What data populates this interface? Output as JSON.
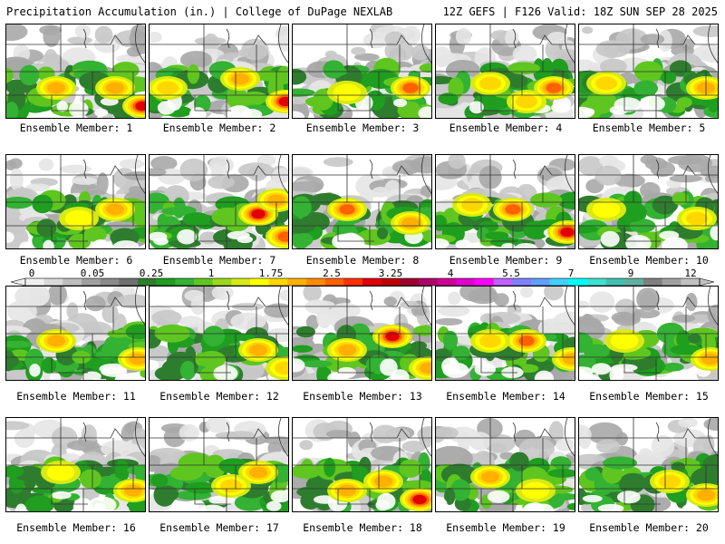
{
  "header": {
    "title": "Precipitation Accumulation (in.) | College of DuPage NEXLAB",
    "run_info": "12Z GEFS | F126 Valid: 18Z SUN SEP 28 2025"
  },
  "caption_prefix": "Ensemble Member: ",
  "members": [
    {
      "label": "Ensemble Member: 1"
    },
    {
      "label": "Ensemble Member: 2"
    },
    {
      "label": "Ensemble Member: 3"
    },
    {
      "label": "Ensemble Member: 4"
    },
    {
      "label": "Ensemble Member: 5"
    },
    {
      "label": "Ensemble Member: 6"
    },
    {
      "label": "Ensemble Member: 7"
    },
    {
      "label": "Ensemble Member: 8"
    },
    {
      "label": "Ensemble Member: 9"
    },
    {
      "label": "Ensemble Member: 10"
    },
    {
      "label": "Ensemble Member: 11"
    },
    {
      "label": "Ensemble Member: 12"
    },
    {
      "label": "Ensemble Member: 13"
    },
    {
      "label": "Ensemble Member: 14"
    },
    {
      "label": "Ensemble Member: 15"
    },
    {
      "label": "Ensemble Member: 16"
    },
    {
      "label": "Ensemble Member: 17"
    },
    {
      "label": "Ensemble Member: 18"
    },
    {
      "label": "Ensemble Member: 19"
    },
    {
      "label": "Ensemble Member: 20"
    }
  ],
  "colorbar": {
    "tick_labels": [
      "0",
      "0.05",
      "0.25",
      "1",
      "1.75",
      "2.5",
      "3.25",
      "4",
      "5.5",
      "7",
      "9",
      "12"
    ],
    "colors": [
      "#f0f0f0",
      "#d8d8d8",
      "#bdbdbd",
      "#a0a0a0",
      "#8a8a8a",
      "#6f6f6f",
      "#2e7d2e",
      "#1f9e1f",
      "#33b233",
      "#5fc61f",
      "#9bd81a",
      "#d8ea14",
      "#ffff00",
      "#ffd700",
      "#ffb000",
      "#ff8c00",
      "#ff6000",
      "#ff3000",
      "#e00000",
      "#c00000",
      "#a00030",
      "#b0006a",
      "#d0009a",
      "#e000d0",
      "#ff00ff",
      "#c060ff",
      "#8080ff",
      "#60a0ff",
      "#40d0ff",
      "#00ffff",
      "#40e0d0",
      "#40c0b0",
      "#60b0a0",
      "#808080",
      "#a0a0a0",
      "#c0c0c0"
    ]
  }
}
